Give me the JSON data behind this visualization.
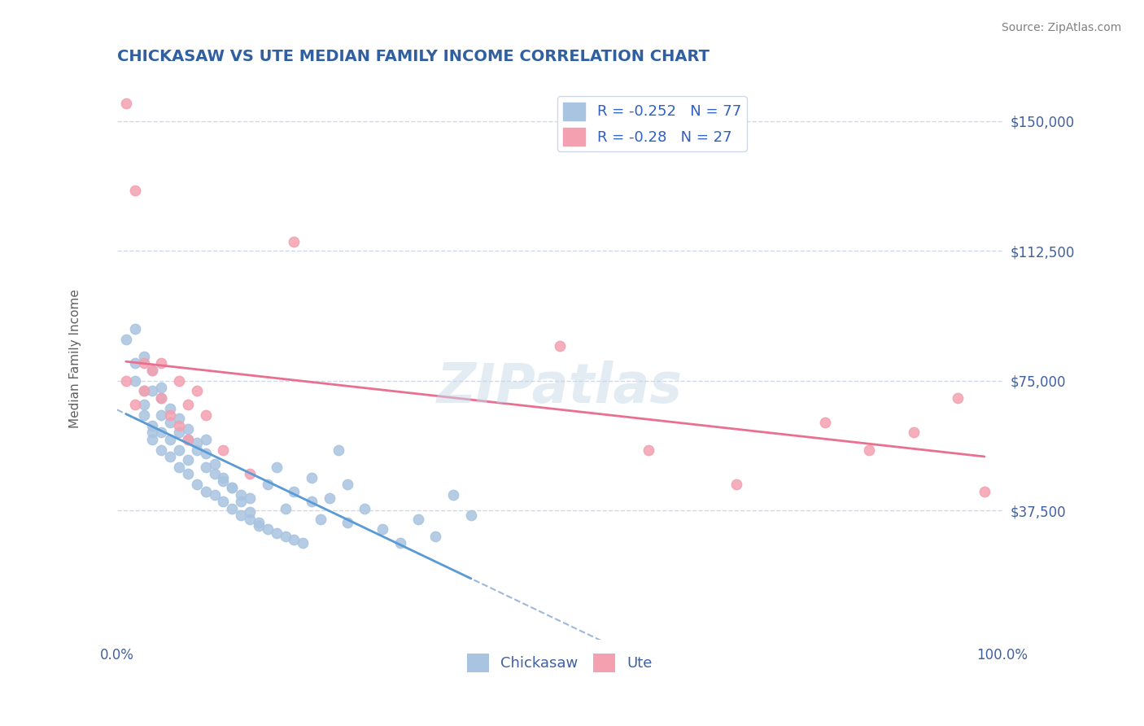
{
  "title": "CHICKASAW VS UTE MEDIAN FAMILY INCOME CORRELATION CHART",
  "source_text": "Source: ZipAtlas.com",
  "xlabel": "",
  "ylabel": "Median Family Income",
  "ytick_labels": [
    "$37,500",
    "$75,000",
    "$112,500",
    "$150,000"
  ],
  "ytick_values": [
    37500,
    75000,
    112500,
    150000
  ],
  "ylim": [
    0,
    162500
  ],
  "xlim": [
    0.0,
    1.0
  ],
  "xtick_labels": [
    "0.0%",
    "100.0%"
  ],
  "xtick_values": [
    0.0,
    1.0
  ],
  "chickasaw_R": -0.252,
  "chickasaw_N": 77,
  "ute_R": -0.28,
  "ute_N": 27,
  "chickasaw_color": "#a8c4e0",
  "ute_color": "#f4a0b0",
  "chickasaw_line_color": "#5b9bd5",
  "ute_line_color": "#e87090",
  "dashed_line_color": "#a0b8d8",
  "watermark_text": "ZIPatlas",
  "watermark_color": "#c8d8e8",
  "title_color": "#3060a0",
  "source_color": "#808080",
  "ylabel_color": "#606060",
  "axis_label_color": "#4060a0",
  "legend_R_color": "#3060c0",
  "legend_N_color": "#3060c0",
  "background_color": "#ffffff",
  "grid_color": "#d0d8e8",
  "chickasaw_x": [
    0.01,
    0.02,
    0.02,
    0.03,
    0.03,
    0.03,
    0.04,
    0.04,
    0.04,
    0.04,
    0.05,
    0.05,
    0.05,
    0.05,
    0.06,
    0.06,
    0.06,
    0.07,
    0.07,
    0.07,
    0.08,
    0.08,
    0.08,
    0.09,
    0.09,
    0.1,
    0.1,
    0.1,
    0.11,
    0.11,
    0.12,
    0.12,
    0.13,
    0.13,
    0.14,
    0.14,
    0.15,
    0.15,
    0.16,
    0.17,
    0.18,
    0.19,
    0.2,
    0.21,
    0.22,
    0.23,
    0.25,
    0.26,
    0.28,
    0.3,
    0.32,
    0.34,
    0.36,
    0.38,
    0.4,
    0.02,
    0.03,
    0.04,
    0.05,
    0.06,
    0.07,
    0.08,
    0.09,
    0.1,
    0.11,
    0.12,
    0.13,
    0.14,
    0.15,
    0.16,
    0.17,
    0.18,
    0.19,
    0.2,
    0.22,
    0.24,
    0.26
  ],
  "chickasaw_y": [
    87000,
    80000,
    75000,
    72000,
    68000,
    65000,
    62000,
    60000,
    58000,
    72000,
    55000,
    60000,
    65000,
    70000,
    53000,
    58000,
    63000,
    50000,
    55000,
    60000,
    48000,
    52000,
    58000,
    45000,
    55000,
    43000,
    50000,
    58000,
    42000,
    48000,
    40000,
    46000,
    38000,
    44000,
    36000,
    42000,
    35000,
    41000,
    34000,
    32000,
    31000,
    30000,
    29000,
    28000,
    40000,
    35000,
    55000,
    45000,
    38000,
    32000,
    28000,
    35000,
    30000,
    42000,
    36000,
    90000,
    82000,
    78000,
    73000,
    67000,
    64000,
    61000,
    57000,
    54000,
    51000,
    47000,
    44000,
    40000,
    37000,
    33000,
    45000,
    50000,
    38000,
    43000,
    47000,
    41000,
    34000
  ],
  "ute_x": [
    0.01,
    0.01,
    0.02,
    0.02,
    0.03,
    0.03,
    0.04,
    0.05,
    0.05,
    0.06,
    0.07,
    0.07,
    0.08,
    0.08,
    0.09,
    0.1,
    0.12,
    0.15,
    0.2,
    0.5,
    0.6,
    0.7,
    0.8,
    0.85,
    0.9,
    0.95,
    0.98
  ],
  "ute_y": [
    155000,
    75000,
    130000,
    68000,
    80000,
    72000,
    78000,
    80000,
    70000,
    65000,
    75000,
    62000,
    68000,
    58000,
    72000,
    65000,
    55000,
    48000,
    115000,
    85000,
    55000,
    45000,
    63000,
    55000,
    60000,
    70000,
    43000
  ]
}
